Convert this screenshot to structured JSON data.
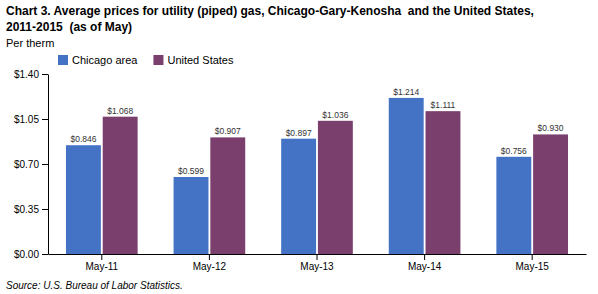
{
  "chart_data": {
    "type": "bar",
    "title": "Chart 3. Average prices for utility (piped) gas, Chicago-Gary-Kenosha  and the United States,",
    "subtitle": "2011-2015  (as of May)",
    "y_label": "Per therm",
    "annotations": [
      "Source: U.S. Bureau of Labor Statistics."
    ],
    "categories": [
      "May-11",
      "May-12",
      "May-13",
      "May-14",
      "May-15"
    ],
    "series": [
      {
        "name": "Chicago area",
        "color": "#4472C4",
        "values": [
          0.846,
          0.599,
          0.897,
          1.214,
          0.756
        ],
        "value_labels": [
          "$0.846",
          "$0.599",
          "$0.897",
          "$1.214",
          "$0.756"
        ]
      },
      {
        "name": "United States",
        "color": "#7B3F6E",
        "values": [
          1.068,
          0.907,
          1.036,
          1.111,
          0.93
        ],
        "value_labels": [
          "$1.068",
          "$0.907",
          "$1.036",
          "$1.111",
          "$0.930"
        ]
      }
    ],
    "ylim": [
      0,
      1.4
    ],
    "yticks": [
      {
        "value": 0.0,
        "label": "$0.00"
      },
      {
        "value": 0.35,
        "label": "$0.35"
      },
      {
        "value": 0.7,
        "label": "$0.70"
      },
      {
        "value": 1.05,
        "label": "$1.05"
      },
      {
        "value": 1.4,
        "label": "$1.40"
      }
    ],
    "data_labels": true,
    "legend": "upper left",
    "grid": false
  }
}
